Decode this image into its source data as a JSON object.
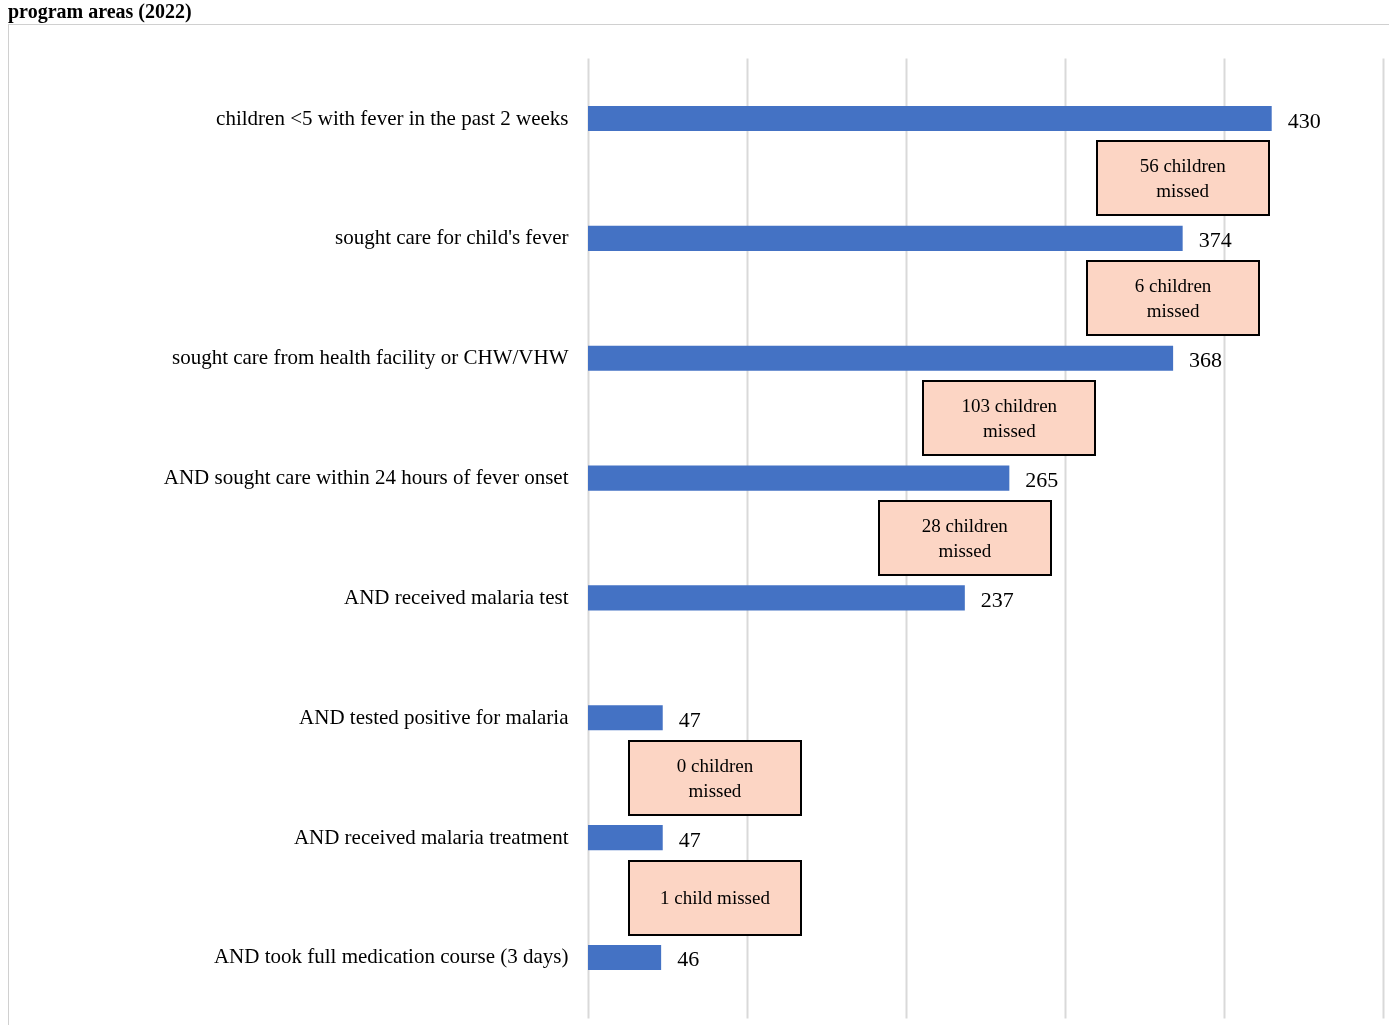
{
  "chart_data": {
    "type": "bar",
    "orientation": "horizontal",
    "title": "program areas (2022)",
    "categories": [
      "children <5 with fever in the past 2 weeks",
      "sought care for child's fever",
      "sought care from health facility or CHW/VHW",
      "AND sought care within 24 hours of fever onset",
      "AND received malaria test",
      "AND tested positive for malaria",
      "AND received malaria treatment",
      "AND took full medication course (3 days)"
    ],
    "values": [
      430,
      374,
      368,
      265,
      237,
      47,
      47,
      46
    ],
    "color": "#4472c4",
    "data_labels": true,
    "xlim": [
      0,
      500
    ],
    "xticks": [
      {
        "value": 0,
        "label": null
      },
      {
        "value": 100,
        "label": null
      },
      {
        "value": 200,
        "label": null
      },
      {
        "value": 300,
        "label": null
      },
      {
        "value": 400,
        "label": null
      },
      {
        "value": 500,
        "label": null
      }
    ],
    "tick_labels": "y",
    "grid": "x",
    "annotations": [
      "56 children missed",
      "6 children missed",
      "103 children missed",
      "28 children missed",
      "0 children missed",
      "1 child missed"
    ]
  }
}
